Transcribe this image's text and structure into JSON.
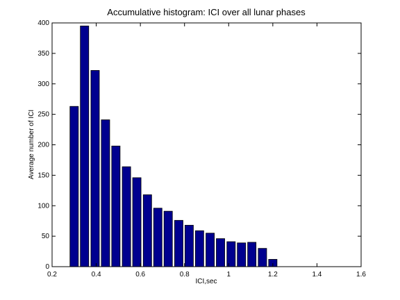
{
  "chart_data": {
    "type": "bar",
    "title": "Accumulative histogram: ICI over all lunar phases",
    "xlabel": "ICI,sec",
    "ylabel": "Average number of ICI",
    "x": [
      0.3,
      0.347,
      0.395,
      0.442,
      0.489,
      0.537,
      0.584,
      0.632,
      0.679,
      0.726,
      0.774,
      0.821,
      0.868,
      0.916,
      0.963,
      1.011,
      1.058,
      1.105,
      1.153,
      1.2
    ],
    "values": [
      263,
      395,
      322,
      241,
      198,
      164,
      146,
      118,
      96,
      91,
      76,
      68,
      59,
      55,
      46,
      41,
      39,
      40,
      30,
      12
    ],
    "color": "#00008f",
    "xlim": [
      0.2,
      1.6
    ],
    "xticks": [
      0.2,
      0.4,
      0.6,
      0.8,
      1,
      1.2,
      1.4,
      1.6
    ],
    "ylim": [
      0,
      400
    ],
    "yticks": [
      0,
      50,
      100,
      150,
      200,
      250,
      300,
      350,
      400
    ],
    "grid": false
  }
}
